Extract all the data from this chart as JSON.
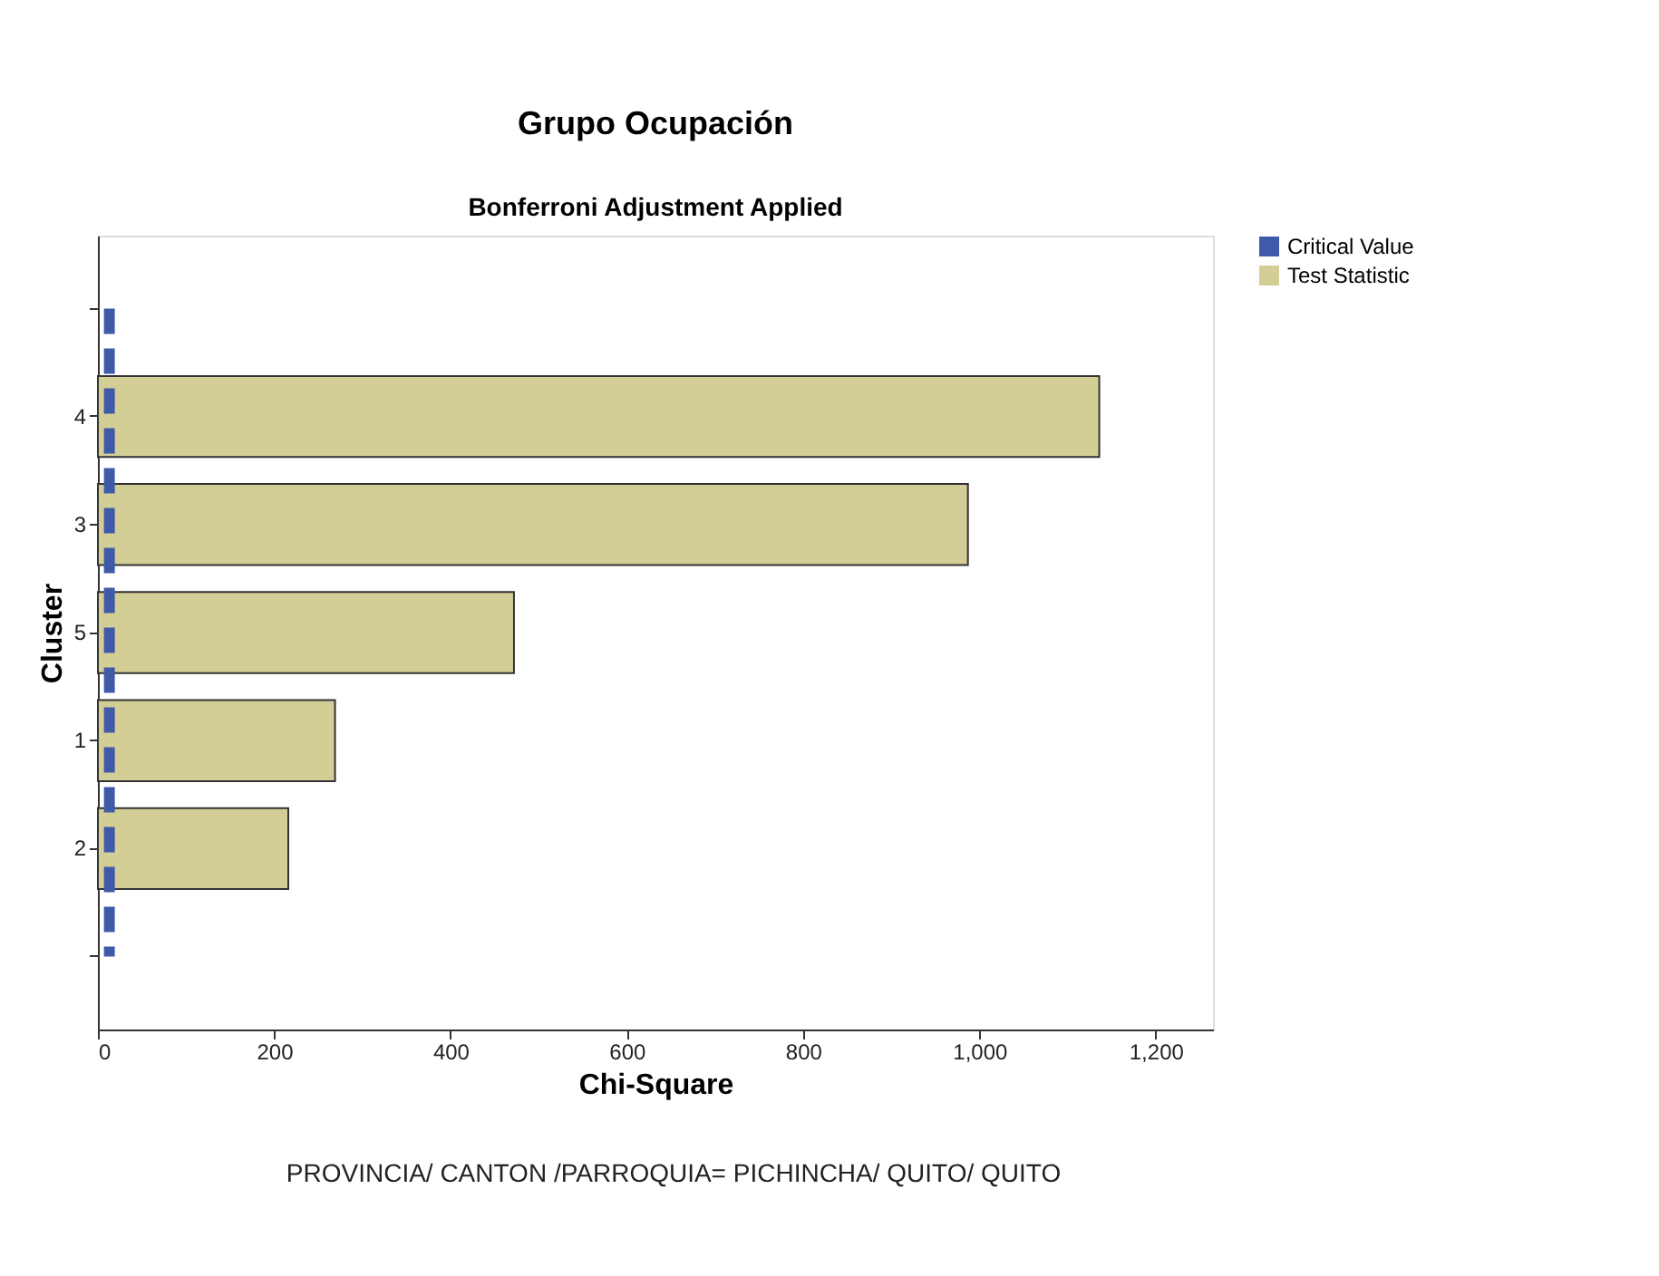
{
  "chart_data": {
    "type": "bar",
    "orientation": "horizontal",
    "title": "Grupo Ocupación",
    "subtitle": "Bonferroni Adjustment Applied",
    "xlabel": "Chi-Square",
    "ylabel": "Cluster",
    "categories": [
      null,
      "4",
      "3",
      "5",
      "1",
      "2",
      null
    ],
    "series": [
      {
        "name": "Test Statistic",
        "color": "#d3cd96",
        "values": [
          null,
          1136,
          987,
          472,
          269,
          216,
          null
        ]
      }
    ],
    "ref_lines": [
      {
        "axis": "x",
        "value": 13,
        "label": "Critical Value",
        "color": "#3f5aa8",
        "line_style": "dashed"
      }
    ],
    "xlim": [
      0,
      1265
    ],
    "xticks": [
      0,
      200,
      400,
      600,
      800,
      {
        "value": 1000,
        "label": "1,000"
      },
      {
        "value": 1200,
        "label": "1,200"
      }
    ],
    "grid": false,
    "legend": "top right",
    "annotations": [
      "PROVINCIA/ CANTON /PARROQUIA= PICHINCHA/ QUITO/ QUITO"
    ]
  }
}
